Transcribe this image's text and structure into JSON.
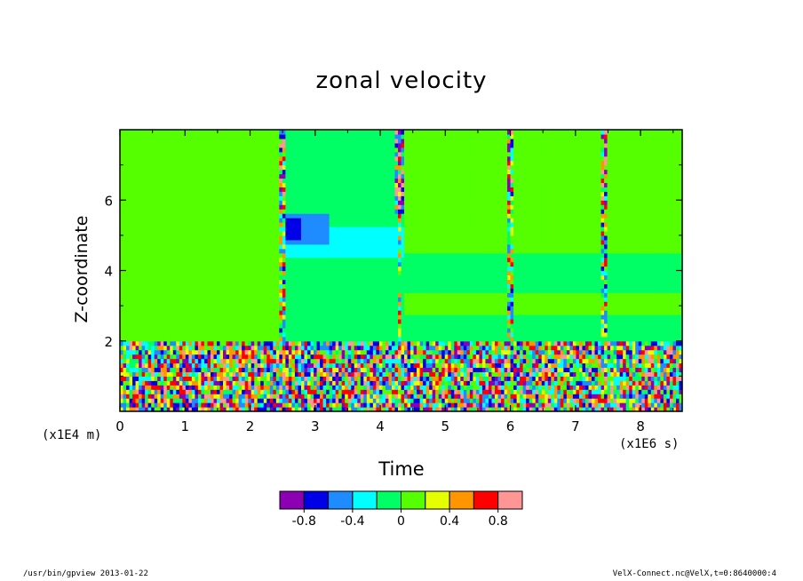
{
  "chart_data": {
    "type": "heatmap",
    "title": "zonal velocity",
    "xlabel": "Time",
    "ylabel": "Z-coordinate",
    "x_unit": "(x1E6 s)",
    "y_unit": "(x1E4 m)",
    "xlim": [
      0,
      8.64
    ],
    "ylim": [
      0,
      8
    ],
    "x_ticks": [
      0,
      1,
      2,
      3,
      4,
      5,
      6,
      7,
      8
    ],
    "y_ticks": [
      2,
      4,
      6
    ],
    "colorbar": {
      "levels": [
        -1.0,
        -0.8,
        -0.6,
        -0.4,
        -0.2,
        0,
        0.2,
        0.4,
        0.6,
        0.8,
        1.0
      ],
      "tick_labels": [
        "-0.8",
        "-0.4",
        "0",
        "0.4",
        "0.8"
      ],
      "tick_values": [
        -0.8,
        -0.4,
        0,
        0.4,
        0.8
      ],
      "colors": [
        "#8c00b4",
        "#0000e6",
        "#1e8cff",
        "#00ffff",
        "#00ff64",
        "#55ff00",
        "#e6ff00",
        "#ff9600",
        "#ff0000",
        "#ff9696"
      ]
    },
    "field_description": [
      {
        "time_range": [
          0,
          2.5
        ],
        "z_range": [
          2,
          8
        ],
        "value": 0.05
      },
      {
        "time_range": [
          2.5,
          4.3
        ],
        "z_range": [
          4.4,
          5.3
        ],
        "value": -0.35
      },
      {
        "time_range": [
          2.55,
          3.0
        ],
        "z_range": [
          4.9,
          5.6
        ],
        "value": -0.75
      },
      {
        "time_range": [
          2.5,
          8.64
        ],
        "z_range": [
          2,
          4.5
        ],
        "value": -0.05
      },
      {
        "time_range": [
          0,
          8.64
        ],
        "z_range": [
          0,
          2
        ],
        "value": "fluctuating -1..1"
      }
    ],
    "disturbance_times": [
      2.5,
      4.3,
      6.0,
      7.45
    ]
  },
  "footer": {
    "left": "/usr/bin/gpview  2013-01-22",
    "right": "VelX-Connect.nc@VelX,t=0:8640000:4"
  }
}
